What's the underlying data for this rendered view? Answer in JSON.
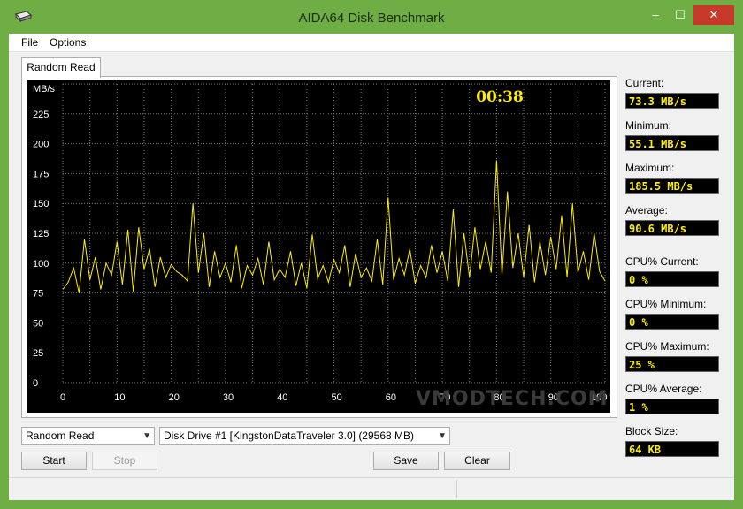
{
  "window": {
    "title": "AIDA64 Disk Benchmark",
    "min_glyph": "–",
    "max_glyph": "☐",
    "close_glyph": "✕"
  },
  "menu": {
    "file": "File",
    "options": "Options"
  },
  "tab": {
    "label": "Random Read"
  },
  "graph": {
    "timer": "00:38",
    "y_unit": "MB/s",
    "y_ticks": [
      "225",
      "200",
      "175",
      "150",
      "125",
      "100",
      "75",
      "50",
      "25",
      "0"
    ],
    "x_ticks": [
      "0",
      "10",
      "20",
      "30",
      "40",
      "50",
      "60",
      "70",
      "80",
      "90",
      "100 %"
    ],
    "watermark": "VMODTECH.COM"
  },
  "chart_data": {
    "type": "line",
    "title": "",
    "xlabel": "",
    "ylabel": "MB/s",
    "xlim": [
      0,
      100
    ],
    "ylim": [
      0,
      250
    ],
    "series": [
      {
        "color": "#ffee00",
        "x": [
          0,
          1,
          2,
          3,
          4,
          5,
          6,
          7,
          8,
          9,
          10,
          11,
          12,
          13,
          14,
          15,
          16,
          17,
          18,
          19,
          20,
          21,
          22,
          23,
          24,
          25,
          26,
          27,
          28,
          29,
          30,
          31,
          32,
          33,
          34,
          35,
          36,
          37,
          38,
          39,
          40,
          41,
          42,
          43,
          44,
          45,
          46,
          47,
          48,
          49,
          50,
          51,
          52,
          53,
          54,
          55,
          56,
          57,
          58,
          59,
          60,
          61,
          62,
          63,
          64,
          65,
          66,
          67,
          68,
          69,
          70,
          71,
          72,
          73,
          74,
          75,
          76,
          77,
          78,
          79,
          80,
          81,
          82,
          83,
          84,
          85,
          86,
          87,
          88,
          89,
          90,
          91,
          92,
          93,
          94,
          95,
          96,
          97,
          98,
          99,
          100
        ],
        "values": [
          78,
          84,
          96,
          75,
          120,
          86,
          105,
          78,
          100,
          90,
          118,
          82,
          128,
          76,
          130,
          95,
          112,
          80,
          105,
          88,
          99,
          93,
          90,
          85,
          150,
          92,
          125,
          80,
          110,
          88,
          100,
          84,
          115,
          79,
          98,
          90,
          104,
          82,
          118,
          86,
          95,
          88,
          110,
          81,
          100,
          79,
          124,
          87,
          98,
          84,
          103,
          92,
          115,
          80,
          108,
          88,
          96,
          85,
          120,
          82,
          155,
          86,
          104,
          90,
          112,
          83,
          98,
          88,
          115,
          92,
          110,
          85,
          145,
          80,
          125,
          88,
          130,
          95,
          118,
          92,
          186,
          90,
          160,
          96,
          125,
          88,
          132,
          84,
          118,
          90,
          122,
          95,
          140,
          88,
          150,
          92,
          110,
          86,
          125,
          93,
          85
        ]
      }
    ],
    "grid": true,
    "legend": "none"
  },
  "stats": {
    "current_label": "Current:",
    "current_value": "73.3 MB/s",
    "minimum_label": "Minimum:",
    "minimum_value": "55.1 MB/s",
    "maximum_label": "Maximum:",
    "maximum_value": "185.5 MB/s",
    "average_label": "Average:",
    "average_value": "90.6 MB/s",
    "cpu_current_label": "CPU% Current:",
    "cpu_current_value": "0 %",
    "cpu_minimum_label": "CPU% Minimum:",
    "cpu_minimum_value": "0 %",
    "cpu_maximum_label": "CPU% Maximum:",
    "cpu_maximum_value": "25 %",
    "cpu_average_label": "CPU% Average:",
    "cpu_average_value": "1 %",
    "block_size_label": "Block Size:",
    "block_size_value": "64 KB"
  },
  "controls": {
    "test_select": "Random Read",
    "drive_select": "Disk Drive #1  [KingstonDataTraveler 3.0]  (29568 MB)",
    "start": "Start",
    "stop": "Stop",
    "save": "Save",
    "clear": "Clear"
  }
}
